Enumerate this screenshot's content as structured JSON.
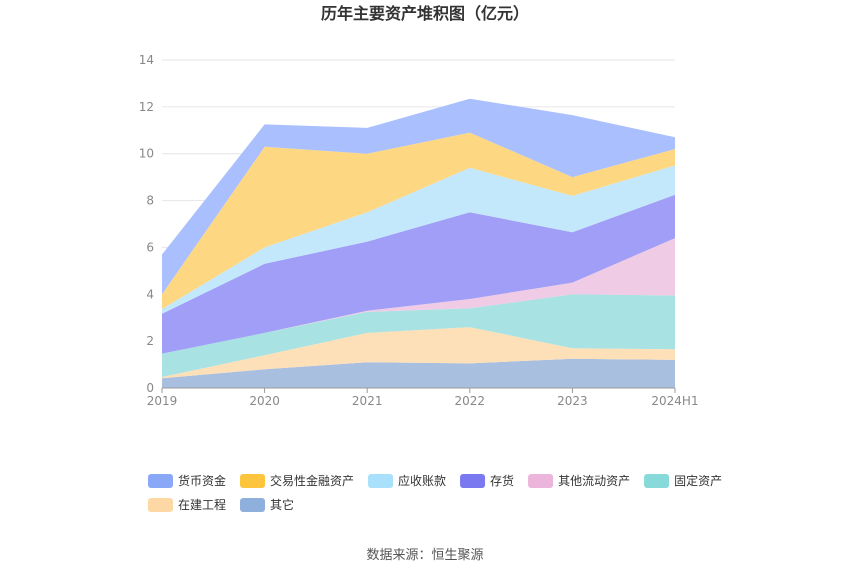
{
  "chart_data": {
    "type": "area",
    "stacked": true,
    "title": "历年主要资产堆积图（亿元）",
    "categories": [
      "2019",
      "2020",
      "2021",
      "2022",
      "2023",
      "2024H1"
    ],
    "ylim": [
      0,
      14
    ],
    "yticks": [
      "0",
      "2",
      "4",
      "6",
      "8",
      "10",
      "12",
      "14"
    ],
    "grid": true,
    "legend_position": "bottom",
    "series": [
      {
        "name": "其它",
        "color": "#a9bfe0",
        "values": [
          0.42,
          0.8,
          1.1,
          1.05,
          1.25,
          1.2
        ]
      },
      {
        "name": "在建工程",
        "color": "#fde0b8",
        "values": [
          0.05,
          0.6,
          1.25,
          1.55,
          0.45,
          0.45
        ]
      },
      {
        "name": "固定资产",
        "color": "#a8e2e3",
        "values": [
          1.0,
          0.95,
          0.9,
          0.8,
          2.3,
          2.3
        ]
      },
      {
        "name": "其他流动资产",
        "color": "#f0cbe6",
        "values": [
          0.0,
          0.0,
          0.05,
          0.4,
          0.5,
          2.45
        ]
      },
      {
        "name": "存货",
        "color": "#a09ef6",
        "values": [
          1.7,
          2.95,
          2.95,
          3.7,
          2.15,
          1.85
        ]
      },
      {
        "name": "应收账款",
        "color": "#c3e8fb",
        "values": [
          0.2,
          0.7,
          1.25,
          1.9,
          1.55,
          1.25
        ]
      },
      {
        "name": "交易性金融资产",
        "color": "#fed782",
        "values": [
          0.63,
          4.3,
          2.5,
          1.5,
          0.8,
          0.7
        ]
      },
      {
        "name": "货币资金",
        "color": "#a9bffe",
        "values": [
          1.7,
          0.95,
          1.1,
          1.45,
          2.65,
          0.5
        ]
      }
    ],
    "legend": [
      {
        "name": "货币资金",
        "color": "#8aa8f8"
      },
      {
        "name": "交易性金融资产",
        "color": "#fdc53d"
      },
      {
        "name": "应收账款",
        "color": "#a9e0fb"
      },
      {
        "name": "存货",
        "color": "#7b79ef"
      },
      {
        "name": "其他流动资产",
        "color": "#ecb6dc"
      },
      {
        "name": "固定资产",
        "color": "#87d9da"
      },
      {
        "name": "在建工程",
        "color": "#fdd8a4"
      },
      {
        "name": "其它",
        "color": "#8fb0dc"
      }
    ],
    "source": "数据来源：恒生聚源"
  }
}
